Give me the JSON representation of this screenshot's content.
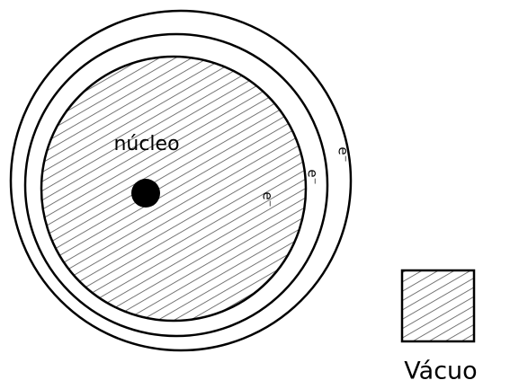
{
  "nucleus_label": "núcleo",
  "electrons": [
    "e⁻",
    "e⁻",
    "e⁻"
  ],
  "legend": {
    "label": "Vácuo"
  }
}
